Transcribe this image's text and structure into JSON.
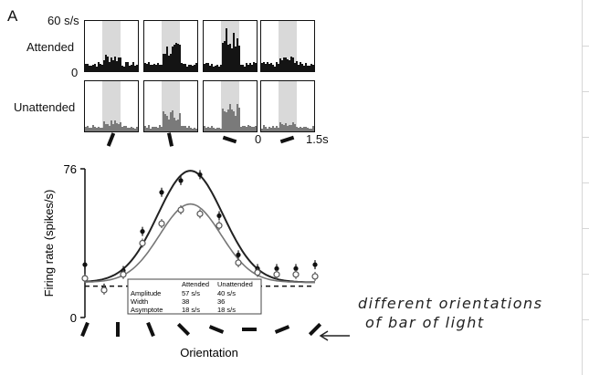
{
  "panel_label": "A",
  "psth": {
    "scale_top": "60 s/s",
    "scale_bottom": "0",
    "row_labels": [
      "Attended",
      "Unattended"
    ],
    "time_start": "0",
    "time_end": "1.5s",
    "columns": [
      {
        "orientation_deg": 112,
        "attended_level": 0.35,
        "unattended_level": 0.22
      },
      {
        "orientation_deg": 78,
        "attended_level": 0.55,
        "unattended_level": 0.42
      },
      {
        "orientation_deg": 18,
        "attended_level": 0.92,
        "unattended_level": 0.55
      },
      {
        "orientation_deg": 162,
        "attended_level": 0.3,
        "unattended_level": 0.18
      }
    ]
  },
  "chart_data": {
    "type": "line",
    "ylabel": "Firing rate (spikes/s)",
    "xlabel": "Orientation",
    "ylim": [
      0,
      76
    ],
    "y_ticks": [
      "0",
      "76"
    ],
    "x": [
      0,
      1,
      2,
      3,
      4,
      5,
      6,
      7,
      8,
      9,
      10,
      11,
      12
    ],
    "series": [
      {
        "name": "Attended",
        "style": "filled",
        "color": "#111111",
        "values": [
          27,
          15,
          24,
          44,
          64,
          70,
          73,
          52,
          32,
          25,
          25,
          25,
          27
        ]
      },
      {
        "name": "Unattended",
        "style": "open",
        "color": "#555555",
        "values": [
          20,
          14,
          22,
          38,
          48,
          55,
          53,
          47,
          28,
          23,
          22,
          22,
          21
        ]
      }
    ],
    "fits": [
      {
        "name": "Attended",
        "amplitude": 57,
        "center": 5.5,
        "sigma": 1.7,
        "asymptote": 18
      },
      {
        "name": "Unattended",
        "amplitude": 40,
        "center": 5.5,
        "sigma": 1.6,
        "asymptote": 18
      }
    ],
    "baseline": 16,
    "orientation_marks_deg": [
      112,
      90,
      68,
      45,
      22,
      0,
      158,
      135
    ],
    "fit_table": {
      "headers": [
        "",
        "Attended",
        "Unattended"
      ],
      "rows": [
        [
          "Amplitude",
          "57 s/s",
          "40 s/s"
        ],
        [
          "Width",
          "38",
          "36"
        ],
        [
          "Asymptote",
          "18 s/s",
          "18 s/s"
        ]
      ]
    }
  },
  "annotation": {
    "line1": "different orientations",
    "line2": "of bar of light"
  }
}
